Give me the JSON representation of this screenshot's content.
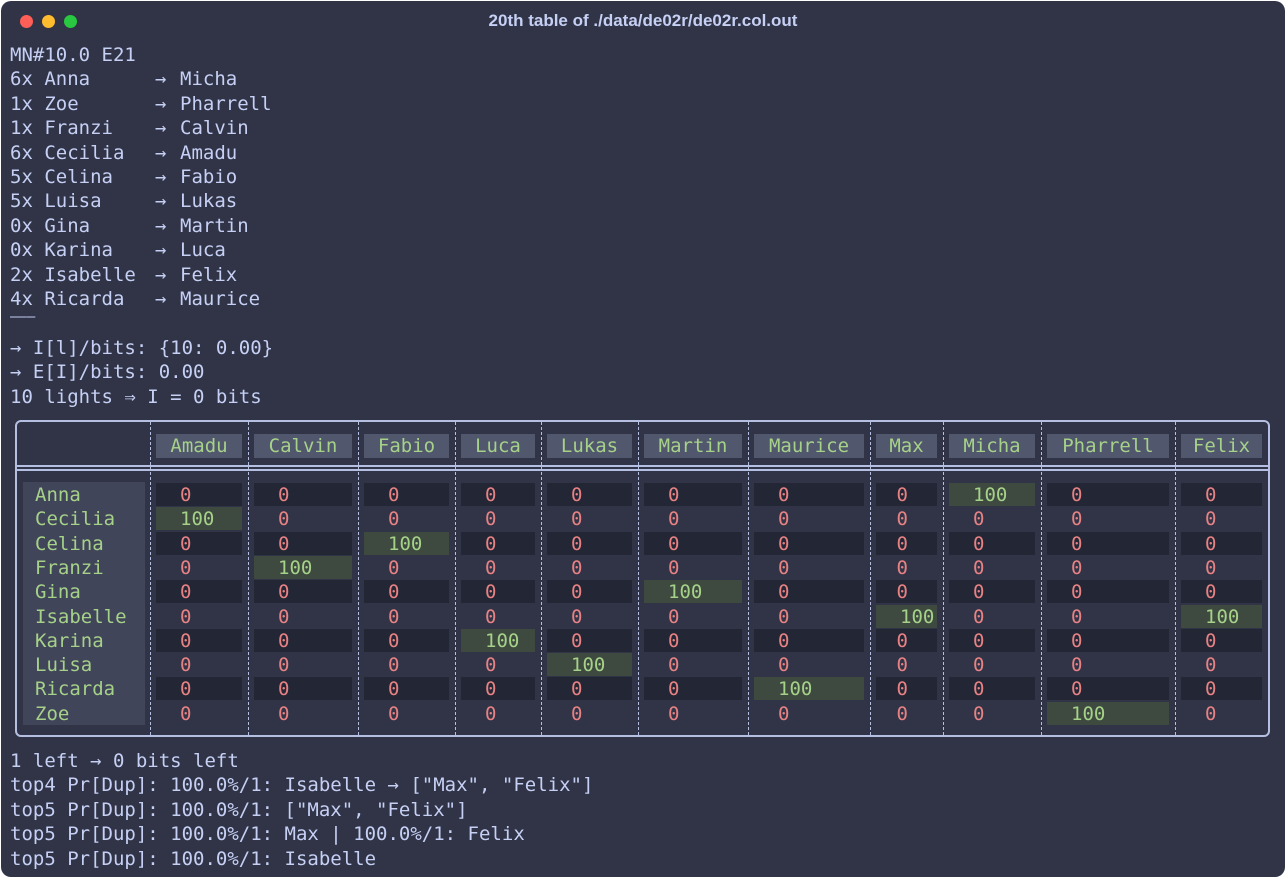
{
  "window": {
    "title": "20th table of ./data/de02r/de02r.col.out"
  },
  "header_line": "MN#10.0 E21",
  "pairs": [
    {
      "count": "6x",
      "name": "Anna",
      "target": "Micha"
    },
    {
      "count": "1x",
      "name": "Zoe",
      "target": "Pharrell"
    },
    {
      "count": "1x",
      "name": "Franzi",
      "target": "Calvin"
    },
    {
      "count": "6x",
      "name": "Cecilia",
      "target": "Amadu"
    },
    {
      "count": "5x",
      "name": "Celina",
      "target": "Fabio"
    },
    {
      "count": "5x",
      "name": "Luisa",
      "target": "Lukas"
    },
    {
      "count": "0x",
      "name": "Gina",
      "target": "Martin"
    },
    {
      "count": "0x",
      "name": "Karina",
      "target": "Luca"
    },
    {
      "count": "2x",
      "name": "Isabelle",
      "target": "Felix"
    },
    {
      "count": "4x",
      "name": "Ricarda",
      "target": "Maurice"
    }
  ],
  "arrow_glyph": "→",
  "separator": "———",
  "info_lines": [
    "→ I[l]/bits: {10: 0.00}",
    "→ E[I]/bits: 0.00",
    "10 lights ⇒ I = 0 bits"
  ],
  "table": {
    "columns": [
      "Amadu",
      "Calvin",
      "Fabio",
      "Luca",
      "Lukas",
      "Martin",
      "Maurice",
      "Max",
      "Micha",
      "Pharrell",
      "Felix"
    ],
    "rows": [
      {
        "name": "Anna",
        "values": [
          "0",
          "0",
          "0",
          "0",
          "0",
          "0",
          "0",
          "0",
          "100",
          "0",
          "0"
        ]
      },
      {
        "name": "Cecilia",
        "values": [
          "100",
          "0",
          "0",
          "0",
          "0",
          "0",
          "0",
          "0",
          "0",
          "0",
          "0"
        ]
      },
      {
        "name": "Celina",
        "values": [
          "0",
          "0",
          "100",
          "0",
          "0",
          "0",
          "0",
          "0",
          "0",
          "0",
          "0"
        ]
      },
      {
        "name": "Franzi",
        "values": [
          "0",
          "100",
          "0",
          "0",
          "0",
          "0",
          "0",
          "0",
          "0",
          "0",
          "0"
        ]
      },
      {
        "name": "Gina",
        "values": [
          "0",
          "0",
          "0",
          "0",
          "0",
          "100",
          "0",
          "0",
          "0",
          "0",
          "0"
        ]
      },
      {
        "name": "Isabelle",
        "values": [
          "0",
          "0",
          "0",
          "0",
          "0",
          "0",
          "0",
          "100",
          "0",
          "0",
          "100"
        ]
      },
      {
        "name": "Karina",
        "values": [
          "0",
          "0",
          "0",
          "100",
          "0",
          "0",
          "0",
          "0",
          "0",
          "0",
          "0"
        ]
      },
      {
        "name": "Luisa",
        "values": [
          "0",
          "0",
          "0",
          "0",
          "100",
          "0",
          "0",
          "0",
          "0",
          "0",
          "0"
        ]
      },
      {
        "name": "Ricarda",
        "values": [
          "0",
          "0",
          "0",
          "0",
          "0",
          "0",
          "100",
          "0",
          "0",
          "0",
          "0"
        ]
      },
      {
        "name": "Zoe",
        "values": [
          "0",
          "0",
          "0",
          "0",
          "0",
          "0",
          "0",
          "0",
          "0",
          "100",
          "0"
        ]
      }
    ]
  },
  "footer_lines": [
    "1 left → 0 bits left",
    "top4 Pr[Dup]: 100.0%/1: Isabelle → [\"Max\", \"Felix\"]",
    "top5 Pr[Dup]: 100.0%/1: [\"Max\", \"Felix\"]",
    "top5 Pr[Dup]: 100.0%/1: Max | 100.0%/1: Felix",
    "top5 Pr[Dup]: 100.0%/1: Isabelle"
  ]
}
